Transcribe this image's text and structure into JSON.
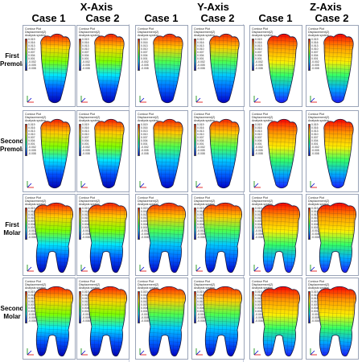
{
  "axes": [
    {
      "title": "X-Axis",
      "cases": [
        "Case 1",
        "Case 2"
      ]
    },
    {
      "title": "Y-Axis",
      "cases": [
        "Case 1",
        "Case 2"
      ]
    },
    {
      "title": "Z-Axis",
      "cases": [
        "Case 1",
        "Case 2"
      ]
    }
  ],
  "rows": [
    {
      "label_lines": [
        "First",
        "Premolar"
      ],
      "tooth": "premolar"
    },
    {
      "label_lines": [
        "Second",
        "Premolar"
      ],
      "tooth": "premolar"
    },
    {
      "label_lines": [
        "First",
        "Molar"
      ],
      "tooth": "molar"
    },
    {
      "label_lines": [
        "Second",
        "Molar"
      ],
      "tooth": "molar"
    }
  ],
  "legend": {
    "title_lines": [
      "Contour Plot",
      "Displacement(Z)",
      "Analysis system"
    ],
    "ticks": [
      "0.019",
      "0.016",
      "0.013",
      "0.010",
      "0.007",
      "0.004",
      "0.001",
      "-0.002",
      "-0.005",
      "-0.008"
    ]
  },
  "colors": {
    "mesh": "#1a1a40",
    "panel_border": "#9aa4b8"
  }
}
